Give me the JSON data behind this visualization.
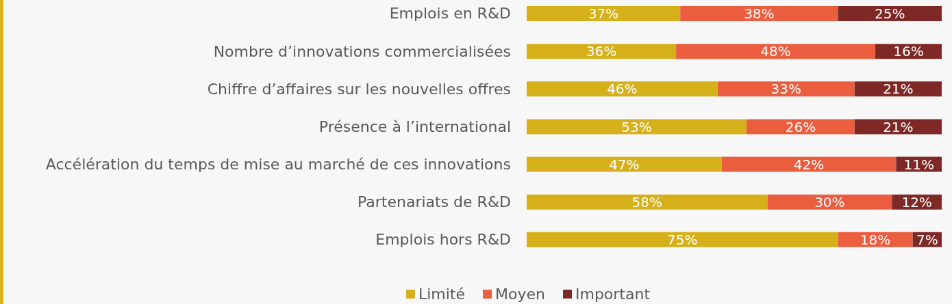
{
  "chart_data": {
    "type": "bar",
    "orientation": "horizontal",
    "stacked": true,
    "tick_labels": "y",
    "legend": "bottom",
    "categories": [
      "Emplois en R&D",
      "Nombre d’innovations commercialisées",
      "Chiffre d’affaires sur les nouvelles offres",
      "Présence à l’international",
      "Accélération du temps de mise au marché de ces innovations",
      "Partenariats de R&D",
      "Emplois hors R&D"
    ],
    "series": [
      {
        "name": "Limité",
        "color": "#d5b01a",
        "values": [
          37,
          36,
          46,
          53,
          47,
          58,
          75
        ],
        "value_labels": [
          "37%",
          "36%",
          "46%",
          "53%",
          "47%",
          "58%",
          "75%"
        ]
      },
      {
        "name": "Moyen",
        "color": "#eb5d3f",
        "values": [
          38,
          48,
          33,
          26,
          42,
          30,
          18
        ],
        "value_labels": [
          "38%",
          "48%",
          "33%",
          "26%",
          "42%",
          "30%",
          "18%"
        ]
      },
      {
        "name": "Important",
        "color": "#7f2927",
        "values": [
          25,
          16,
          21,
          21,
          11,
          12,
          7
        ],
        "value_labels": [
          "25%",
          "16%",
          "21%",
          "21%",
          "11%",
          "12%",
          "7%"
        ]
      }
    ]
  }
}
